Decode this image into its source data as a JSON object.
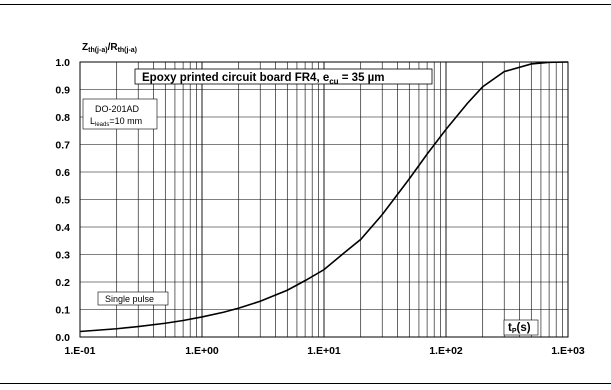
{
  "chart_data": {
    "type": "line",
    "title": "Epoxy printed circuit board FR4, e",
    "title_sub": "cu",
    "title_suffix": " = 35 µm",
    "ylabel_main": "Z",
    "ylabel_sub1": "th(j-a)",
    "ylabel_mid": "/R",
    "ylabel_sub2": "th(j-a)",
    "xlabel_main": "t",
    "xlabel_sub": "P",
    "xlabel_suffix": "(s)",
    "x_scale": "log",
    "xlim": [
      0.1,
      1000
    ],
    "ylim": [
      0,
      1.0
    ],
    "grid": true,
    "x_tick_labels": [
      "1.E-01",
      "1.E+00",
      "1.E+01",
      "1.E+02",
      "1.E+03"
    ],
    "y_tick_labels": [
      "0.0",
      "0.1",
      "0.2",
      "0.3",
      "0.4",
      "0.5",
      "0.6",
      "0.7",
      "0.8",
      "0.9",
      "1.0"
    ],
    "annotations": {
      "package": "DO-201AD",
      "leads_main": "L",
      "leads_sub": "leads",
      "leads_suffix": "=10 mm",
      "pulse": "Single pulse"
    },
    "series": [
      {
        "color": "#000000",
        "x": [
          0.1,
          0.2,
          0.3,
          0.5,
          0.7,
          1.0,
          1.5,
          2.0,
          3.0,
          5.0,
          7.0,
          10,
          15,
          20,
          30,
          50,
          70,
          100,
          150,
          200,
          300,
          500,
          700,
          1000
        ],
        "y": [
          0.02,
          0.03,
          0.038,
          0.05,
          0.06,
          0.073,
          0.09,
          0.105,
          0.13,
          0.17,
          0.205,
          0.245,
          0.31,
          0.355,
          0.445,
          0.575,
          0.665,
          0.755,
          0.85,
          0.91,
          0.965,
          0.993,
          0.999,
          1.0
        ]
      }
    ]
  }
}
